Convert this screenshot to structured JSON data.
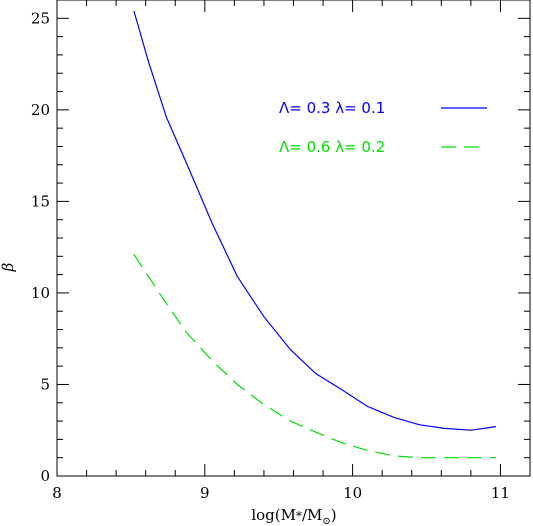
{
  "chart_data": {
    "type": "line",
    "xlabel": "log(M*/M⊙)",
    "ylabel": "β",
    "xlim": [
      8,
      11.2
    ],
    "ylim": [
      0,
      26
    ],
    "x_ticks": [
      "8",
      "9",
      "10",
      "11"
    ],
    "y_ticks": [
      "0",
      "5",
      "10",
      "15",
      "20",
      "25"
    ],
    "grid": false,
    "legend_position": "top-right",
    "series": [
      {
        "name": "Λ= 0.3 λ= 0.1",
        "color": "#0000ff",
        "style": "solid",
        "x": [
          8.52,
          8.62,
          8.74,
          8.87,
          9.05,
          9.22,
          9.4,
          9.58,
          9.75,
          9.93,
          10.1,
          10.28,
          10.45,
          10.62,
          10.8,
          10.97
        ],
        "y": [
          25.4,
          22.6,
          19.6,
          17.2,
          13.8,
          10.9,
          8.7,
          6.9,
          5.6,
          4.7,
          3.8,
          3.2,
          2.8,
          2.6,
          2.5,
          2.7
        ]
      },
      {
        "name": "Λ= 0.6 λ= 0.2",
        "color": "#00e000",
        "style": "dashed",
        "x": [
          8.52,
          8.7,
          8.87,
          9.05,
          9.22,
          9.4,
          9.58,
          9.75,
          9.93,
          10.1,
          10.28,
          10.45,
          10.62,
          10.8,
          10.97
        ],
        "y": [
          12.1,
          9.9,
          7.9,
          6.3,
          5.0,
          3.9,
          3.0,
          2.4,
          1.8,
          1.4,
          1.1,
          1.0,
          1.0,
          1.0,
          1.0
        ]
      }
    ]
  }
}
